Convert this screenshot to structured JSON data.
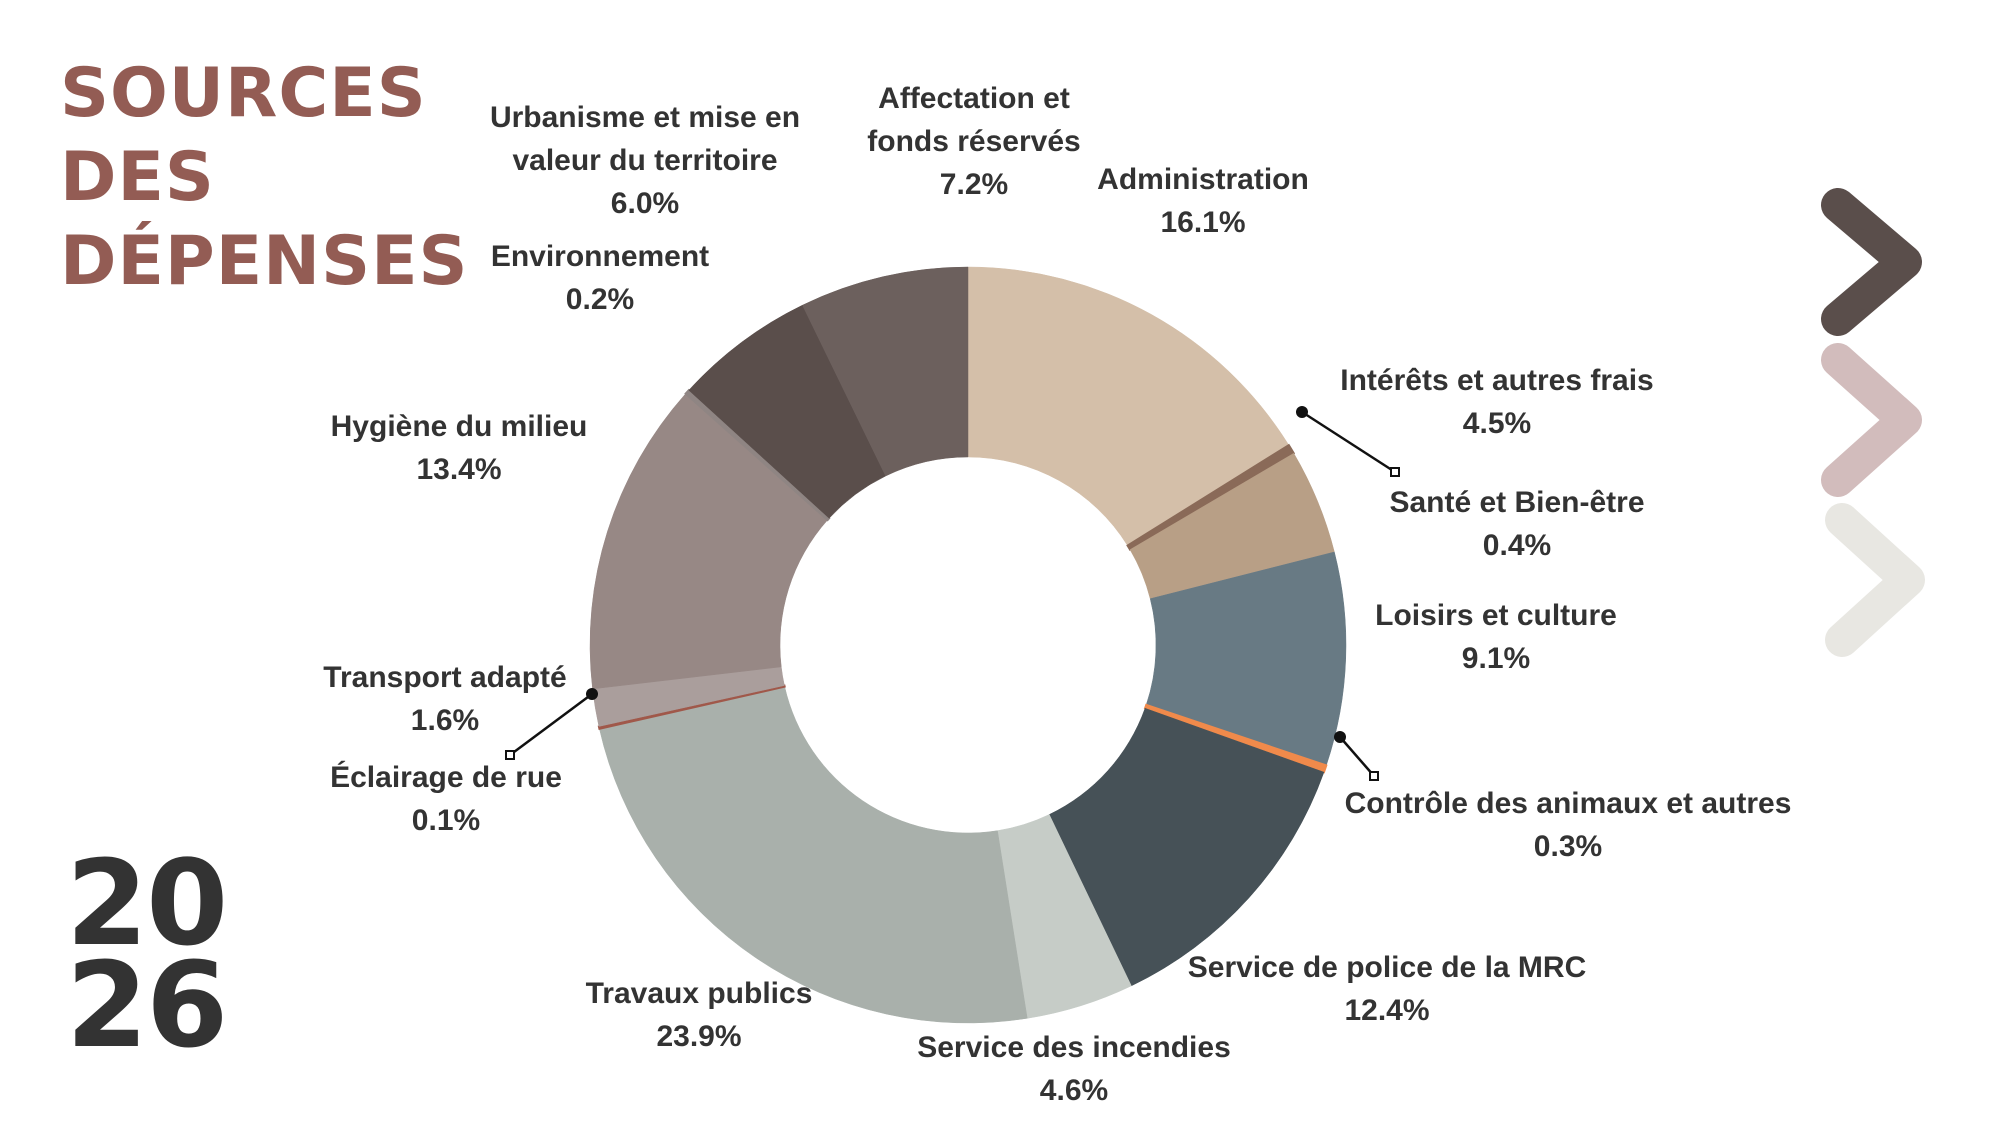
{
  "title": {
    "lines": [
      "SOURCES",
      "DES",
      "DÉPENSES"
    ]
  },
  "year": {
    "line1": "20",
    "line2": "26"
  },
  "chevrons": {
    "colors": [
      "#5a4e4b",
      "#d2bcbc",
      "#e8e7e2"
    ],
    "icon": "chevron-right-icon"
  },
  "chart_data": {
    "type": "pie",
    "variant": "donut",
    "title": "SOURCES DES DÉPENSES",
    "legend": "none",
    "slices": [
      {
        "label": "Administration",
        "value": 16.1,
        "display": "16.1%",
        "color": "#d4bfa9"
      },
      {
        "label": "Santé et Bien-être",
        "value": 0.4,
        "display": "0.4%",
        "color": "#8a6a58"
      },
      {
        "label": "Intérêts et autres frais",
        "value": 4.5,
        "display": "4.5%",
        "color": "#b89f86"
      },
      {
        "label": "Loisirs et culture",
        "value": 9.1,
        "display": "9.1%",
        "color": "#687a84"
      },
      {
        "label": "Contrôle des animaux et autres",
        "value": 0.3,
        "display": "0.3%",
        "color": "#f08a4b"
      },
      {
        "label": "Service de police de la MRC",
        "value": 12.4,
        "display": "12.4%",
        "color": "#465157"
      },
      {
        "label": "Service des incendies",
        "value": 4.6,
        "display": "4.6%",
        "color": "#c6ccc7"
      },
      {
        "label": "Travaux publics",
        "value": 23.9,
        "display": "23.9%",
        "color": "#a9b0ab"
      },
      {
        "label": "Éclairage de rue",
        "value": 0.1,
        "display": "0.1%",
        "color": "#a0584a"
      },
      {
        "label": "Transport adapté",
        "value": 1.6,
        "display": "1.6%",
        "color": "#aa9e9c"
      },
      {
        "label": "Hygiène du milieu",
        "value": 13.4,
        "display": "13.4%",
        "color": "#978885"
      },
      {
        "label": "Environnement",
        "value": 0.2,
        "display": "0.2%",
        "color": "#8f8583"
      },
      {
        "label": "Urbanisme et mise en\nvaleur du territoire",
        "value": 6.0,
        "display": "6.0%",
        "color": "#5a4e4b"
      },
      {
        "label": "Affectation et\nfonds réservés",
        "value": 7.2,
        "display": "7.2%",
        "color": "#6c605d"
      }
    ]
  }
}
